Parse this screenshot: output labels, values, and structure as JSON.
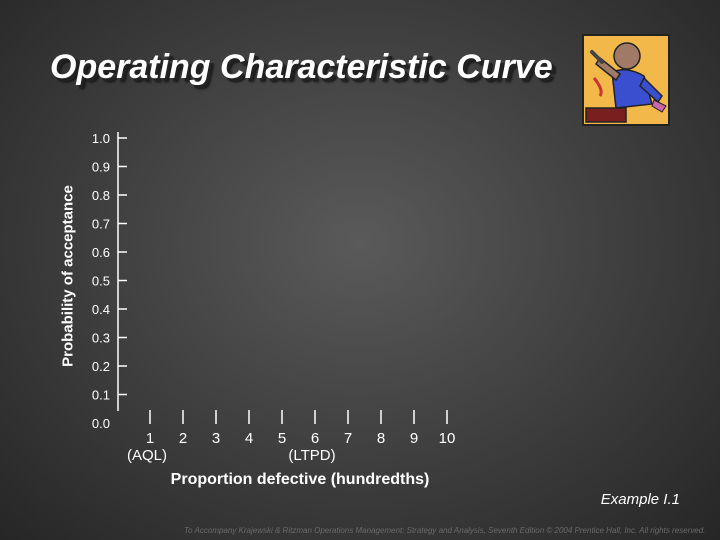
{
  "slide": {
    "title": "Operating Characteristic Curve",
    "example": "Example I.1",
    "footer": "To Accompany Krajewski & Ritzman Operations Management: Strategy and Analysis, Seventh Edition © 2004 Prentice Hall, Inc. All rights reserved."
  },
  "clipart": {
    "icon": "mechanic-with-wrench-clipart"
  },
  "chart_data": {
    "type": "line",
    "title": "Operating Characteristic Curve",
    "xlabel": "Proportion defective (hundredths)",
    "ylabel": "Probability of acceptance",
    "y_ticks": [
      "1.0",
      "0.9",
      "0.8",
      "0.7",
      "0.6",
      "0.5",
      "0.4",
      "0.3",
      "0.2",
      "0.1",
      "0.0"
    ],
    "x_ticks": [
      "1",
      "2",
      "3",
      "4",
      "5",
      "6",
      "7",
      "8",
      "9",
      "10"
    ],
    "x_annotations": [
      {
        "x": "1",
        "text": "(AQL)"
      },
      {
        "x": "6",
        "text": "(LTPD)"
      }
    ],
    "ylim": [
      0,
      1
    ],
    "xlim": [
      1,
      10
    ],
    "grid": false,
    "series": []
  }
}
